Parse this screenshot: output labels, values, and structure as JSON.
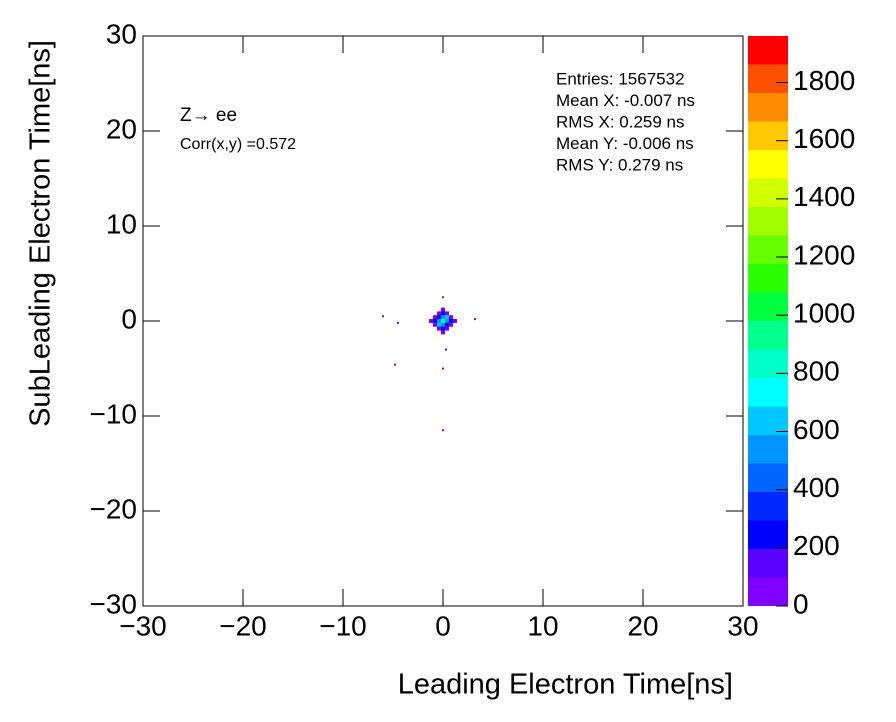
{
  "chart_data": {
    "type": "heatmap",
    "x_label": "Leading Electron Time[ns]",
    "y_label": "SubLeading Electron Time[ns]",
    "annotations": [
      "Z→ ee",
      "Corr(x,y) =0.572"
    ],
    "stats": [
      "Entries: 1567532",
      "Mean X: -0.007 ns",
      "RMS X: 0.259 ns",
      "Mean Y: -0.006 ns",
      "RMS Y: 0.279 ns"
    ],
    "x": [
      0,
      -0.4,
      0,
      0.4,
      -0.8,
      -0.4,
      0,
      0.4,
      0.8,
      -1.2,
      -0.8,
      -0.4,
      0,
      0.4,
      0.8,
      1.2,
      -0.8,
      -0.4,
      0,
      0.4,
      0.8,
      -0.4,
      0,
      0.4,
      0,
      -6,
      -4.8,
      3.2,
      0,
      0,
      0,
      -4.5,
      0.3
    ],
    "y": [
      1.2,
      0.8,
      0.8,
      0.8,
      0.4,
      0.4,
      0.4,
      0.4,
      0.4,
      0,
      0,
      0,
      0,
      0,
      0,
      0,
      -0.4,
      -0.4,
      -0.4,
      -0.4,
      -0.4,
      -0.8,
      -0.8,
      -0.8,
      -1.2,
      0.5,
      -4.6,
      0.2,
      -11.5,
      2.5,
      -5,
      -0.2,
      -3
    ],
    "values": [
      40,
      40,
      200,
      40,
      40,
      200,
      500,
      600,
      40,
      40,
      200,
      500,
      900,
      500,
      200,
      40,
      40,
      600,
      500,
      200,
      40,
      40,
      200,
      40,
      40,
      1,
      1,
      1,
      1,
      1,
      1,
      1,
      1
    ],
    "xlim": [
      -30,
      30
    ],
    "ylim": [
      -30,
      30
    ],
    "xticks": [
      {
        "value": -30,
        "label": "−30"
      },
      {
        "value": -20,
        "label": "−20"
      },
      {
        "value": -10,
        "label": "−10"
      },
      0,
      10,
      20,
      30
    ],
    "yticks": [
      {
        "value": -30,
        "label": "−30"
      },
      {
        "value": -20,
        "label": "−20"
      },
      {
        "value": -10,
        "label": "−10"
      },
      0,
      10,
      20,
      30
    ],
    "zlim": [
      0,
      1960
    ],
    "zticks": [
      0,
      200,
      400,
      600,
      800,
      1000,
      1200,
      1400,
      1600,
      1800
    ],
    "palette": [
      "#8000ff",
      "#5a00ff",
      "#0000ff",
      "#0028ff",
      "#0064ff",
      "#0096ff",
      "#00c8ff",
      "#00ffff",
      "#00ffc8",
      "#00ff8c",
      "#00ff3c",
      "#28ff00",
      "#64ff00",
      "#a0ff00",
      "#d2ff00",
      "#ffff00",
      "#ffc800",
      "#ff8c00",
      "#ff5000",
      "#ff0000"
    ]
  }
}
